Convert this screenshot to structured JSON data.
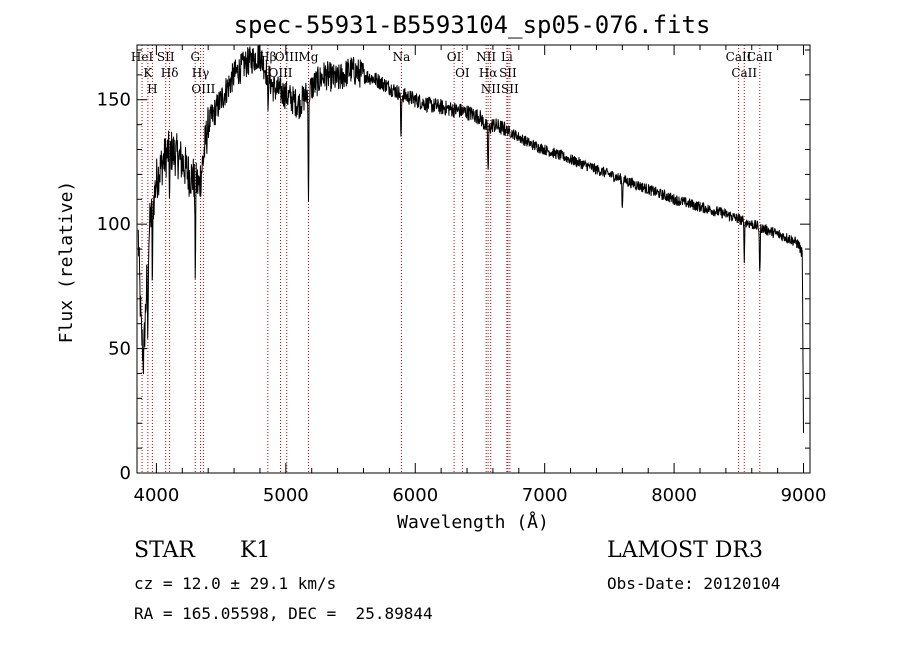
{
  "chart_data": {
    "type": "line",
    "title": "spec-55931-B5593104_sp05-076.fits",
    "xlabel": "Wavelength (Å)",
    "ylabel": "Flux (relative)",
    "xlim": [
      3850,
      9050
    ],
    "ylim": [
      0,
      172
    ],
    "x_ticks": [
      4000,
      5000,
      6000,
      7000,
      8000,
      9000
    ],
    "x_tick_labels": [
      "4000",
      "5000",
      "6000",
      "7000",
      "8000",
      "9000"
    ],
    "y_ticks": [
      0,
      50,
      100,
      150
    ],
    "y_tick_labels": [
      "0",
      "50",
      "100",
      "150"
    ],
    "spectrum_anchors": {
      "wavelength": [
        3860,
        3880,
        3900,
        3920,
        3940,
        3960,
        3980,
        4000,
        4050,
        4100,
        4150,
        4200,
        4250,
        4300,
        4330,
        4400,
        4500,
        4600,
        4700,
        4800,
        4860,
        4900,
        5000,
        5100,
        5200,
        5300,
        5400,
        5500,
        5600,
        5700,
        5800,
        5900,
        6000,
        6100,
        6200,
        6300,
        6400,
        6500,
        6563,
        6600,
        6700,
        6800,
        6900,
        7000,
        7200,
        7400,
        7600,
        7800,
        8000,
        8200,
        8400,
        8500,
        8600,
        8700,
        8800,
        8900,
        8960,
        8990,
        9000
      ],
      "flux": [
        95,
        60,
        45,
        70,
        95,
        105,
        110,
        118,
        125,
        130,
        128,
        125,
        120,
        118,
        115,
        140,
        150,
        160,
        165,
        168,
        160,
        155,
        152,
        148,
        155,
        160,
        158,
        162,
        160,
        158,
        155,
        152,
        150,
        148,
        147,
        146,
        145,
        143,
        138,
        140,
        138,
        135,
        132,
        130,
        126,
        122,
        118,
        114,
        110,
        107,
        104,
        102,
        100,
        98,
        96,
        94,
        92,
        88,
        15
      ]
    },
    "absorption_features": {
      "wavelength": [
        3934,
        3969,
        4102,
        4300,
        4861,
        5175,
        5890,
        6563,
        7600,
        8542,
        8662
      ],
      "depth": [
        35,
        30,
        18,
        35,
        12,
        42,
        20,
        18,
        12,
        15,
        20
      ]
    },
    "spectral_lines": [
      {
        "name": "HeI",
        "wavelength": 3889
      },
      {
        "name": "K",
        "wavelength": 3934
      },
      {
        "name": "H",
        "wavelength": 3969
      },
      {
        "name": "SII",
        "wavelength": 4072
      },
      {
        "name": "Hδ",
        "wavelength": 4102
      },
      {
        "name": "G",
        "wavelength": 4300
      },
      {
        "name": "Hγ",
        "wavelength": 4341
      },
      {
        "name": "OIII",
        "wavelength": 4363
      },
      {
        "name": "Hβ",
        "wavelength": 4861
      },
      {
        "name": "OIII",
        "wavelength": 4959
      },
      {
        "name": "OIII",
        "wavelength": 5007
      },
      {
        "name": "Mg",
        "wavelength": 5175
      },
      {
        "name": "Na",
        "wavelength": 5893
      },
      {
        "name": "OI",
        "wavelength": 6300
      },
      {
        "name": "OI",
        "wavelength": 6364
      },
      {
        "name": "NII",
        "wavelength": 6548
      },
      {
        "name": "Hα",
        "wavelength": 6563
      },
      {
        "name": "NII",
        "wavelength": 6583
      },
      {
        "name": "Li",
        "wavelength": 6708
      },
      {
        "name": "SII",
        "wavelength": 6716
      },
      {
        "name": "SII",
        "wavelength": 6731
      },
      {
        "name": "CaII",
        "wavelength": 8498
      },
      {
        "name": "CaII",
        "wavelength": 8542
      },
      {
        "name": "CaII",
        "wavelength": 8662
      }
    ],
    "colors": {
      "spectrum": "#000000",
      "line_markers": "#cc0000",
      "frame": "#000000"
    }
  },
  "info": {
    "class": "STAR",
    "subclass": "K1",
    "survey": "LAMOST DR3",
    "cz": "cz = 12.0 ± 29.1 km/s",
    "obs_date": "Obs-Date: 20120104",
    "coords": "RA = 165.05598, DEC =  25.89844"
  }
}
